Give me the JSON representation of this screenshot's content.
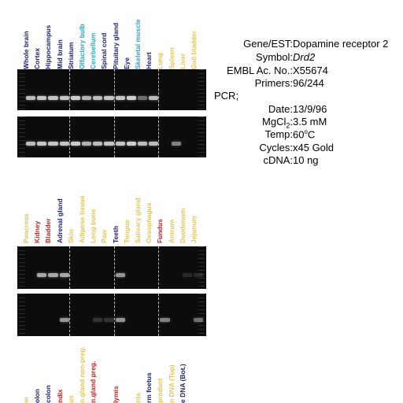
{
  "colors": {
    "dark_blue": "#1c1e7c",
    "cyan": "#2aa6cc",
    "yellow": "#e8c454",
    "red": "#d02020",
    "background": "#ffffff",
    "gel": "#0c0c0c",
    "band": "#cfcfcf"
  },
  "panel1": {
    "labels": [
      {
        "text": "Whole brain",
        "color": "dark_blue"
      },
      {
        "text": "Cortex",
        "color": "dark_blue"
      },
      {
        "text": "Hippocampus",
        "color": "dark_blue"
      },
      {
        "text": "Mid brain",
        "color": "dark_blue"
      },
      {
        "text": "Striatum",
        "color": "dark_blue"
      },
      {
        "text": "Olfactory bulb",
        "color": "cyan"
      },
      {
        "text": "Cerebellum",
        "color": "cyan"
      },
      {
        "text": "Spinal cord",
        "color": "dark_blue"
      },
      {
        "text": "Pituitary gland",
        "color": "dark_blue"
      },
      {
        "text": "Eye",
        "color": "dark_blue"
      },
      {
        "text": "Skeletal muscle",
        "color": "cyan"
      },
      {
        "text": "Heart",
        "color": "dark_blue"
      },
      {
        "text": "Lung",
        "color": "yellow"
      },
      {
        "text": "Spleen",
        "color": "yellow"
      },
      {
        "text": "Liver",
        "color": "yellow"
      },
      {
        "text": "Gall bladder",
        "color": "yellow"
      }
    ],
    "gel_top_intensity": [
      0.9,
      0.95,
      0.95,
      0.95,
      1,
      0.85,
      0.9,
      0.95,
      0.95,
      1,
      0.5,
      0.9,
      0,
      0,
      0,
      0
    ],
    "gel_bottom_intensity": [
      0.9,
      0.95,
      0.95,
      0.95,
      1,
      0.85,
      0.9,
      0.95,
      0.95,
      1,
      0.9,
      0.9,
      0,
      0.6,
      0,
      0
    ]
  },
  "panel2": {
    "labels": [
      {
        "text": "Pancreas",
        "color": "yellow"
      },
      {
        "text": "Kidney",
        "color": "red"
      },
      {
        "text": "Bladder",
        "color": "red"
      },
      {
        "text": "Adrenal gland",
        "color": "dark_blue"
      },
      {
        "text": "Skin",
        "color": "yellow"
      },
      {
        "text": "Adipose tissue",
        "color": "yellow"
      },
      {
        "text": "Long bone",
        "color": "yellow"
      },
      {
        "text": "Paw",
        "color": "yellow"
      },
      {
        "text": "Teeth",
        "color": "dark_blue"
      },
      {
        "text": "Tongue",
        "color": "yellow"
      },
      {
        "text": "Salivary gland",
        "color": "yellow"
      },
      {
        "text": "Oesophagus",
        "color": "yellow"
      },
      {
        "text": "Fundus",
        "color": "red"
      },
      {
        "text": "Antrum",
        "color": "yellow"
      },
      {
        "text": "Duodenum",
        "color": "yellow"
      },
      {
        "text": "Jejunum",
        "color": "yellow"
      }
    ],
    "gel_top_intensity": [
      0,
      0.8,
      0.8,
      0.8,
      0,
      0,
      0,
      0,
      0.7,
      0,
      0,
      0,
      0,
      0,
      0.15,
      0.15
    ],
    "gel_bottom_intensity": [
      0,
      0,
      0,
      0.7,
      0,
      0,
      0.2,
      0.2,
      0.7,
      0,
      0,
      0,
      0.6,
      0,
      0,
      0.5
    ]
  },
  "panel3": {
    "labels": [
      {
        "text": "m",
        "color": "yellow"
      },
      {
        "text": "olon",
        "color": "dark_blue"
      },
      {
        "text": "colon",
        "color": "dark_blue"
      },
      {
        "text": "ndix",
        "color": "red"
      },
      {
        "text": "us",
        "color": "yellow"
      },
      {
        "text": "n.gland non-preg.",
        "color": "yellow"
      },
      {
        "text": "n.gland preg.",
        "color": "red"
      },
      {
        "text": "",
        "color": "yellow"
      },
      {
        "text": "lymis",
        "color": "red"
      },
      {
        "text": "",
        "color": "yellow"
      },
      {
        "text": "nta",
        "color": "yellow"
      },
      {
        "text": "rm foetus",
        "color": "dark_blue"
      },
      {
        "text": "product",
        "color": "yellow"
      },
      {
        "text": "n DNA (Top)",
        "color": "yellow"
      },
      {
        "text": "e DNA (Bot.)",
        "color": "dark_blue"
      }
    ]
  },
  "info": {
    "gene_key": "Gene/EST:",
    "gene_val": "Dopamine receptor 2",
    "symbol_key": "Symbol:",
    "symbol_val": "Drd2",
    "embl_key": "EMBL Ac. No.:",
    "embl_val": "X55674",
    "primers_key": "Primers:",
    "primers_val": "96/244",
    "pcr": "PCR;",
    "date_key": "Date:",
    "date_val": "13/9/96",
    "mgcl_key": "MgCl",
    "mgcl_sub": "2",
    "mgcl_val": "3.5 mM",
    "temp_key": "Temp:",
    "temp_val": "60",
    "temp_sup": "o",
    "temp_unit": "C",
    "cycles_key": "Cycles:",
    "cycles_val": "x45 Gold",
    "cdna_key": "cDNA:",
    "cdna_val": "10 ng"
  }
}
